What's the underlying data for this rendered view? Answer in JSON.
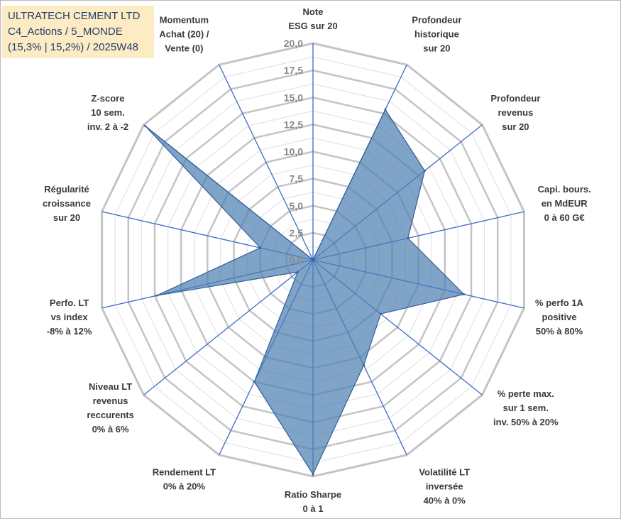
{
  "title": {
    "company": "ULTRATECH CEMENT LTD",
    "category": "C4_Actions / 5_MONDE",
    "stats": "(15,3% | 15,2%) / 2025W48"
  },
  "colors": {
    "fill": "#4f7fb3",
    "stroke": "#2e5f96",
    "grid_major": "#c4c4c4",
    "grid_minor": "#e3e3e3",
    "spoke": "#3b6cc4"
  },
  "chart_data": {
    "type": "radar",
    "title": "ULTRATECH CEMENT LTD",
    "rlim": [
      0,
      20
    ],
    "ticks": [
      "0,0",
      "2,5",
      "5,0",
      "7,5",
      "10,0",
      "12,5",
      "15,0",
      "17,5",
      "20,0"
    ],
    "tick_values": [
      0,
      2.5,
      5,
      7.5,
      10,
      12.5,
      15,
      17.5,
      20
    ],
    "axes": [
      {
        "label": [
          "Note",
          "ESG sur 20"
        ],
        "value": 0
      },
      {
        "label": [
          "Profondeur",
          "historique",
          "sur 20"
        ],
        "value": 15.4
      },
      {
        "label": [
          "Profondeur",
          "revenus",
          "sur 20"
        ],
        "value": 13.2
      },
      {
        "label": [
          "Capi. bours.",
          "en MdEUR",
          "0 à 60 G€"
        ],
        "value": 9.0
      },
      {
        "label": [
          "% perfo 1A",
          "positive",
          "50% à 80%"
        ],
        "value": 14.3
      },
      {
        "label": [
          "% perte max.",
          "sur 1 sem.",
          "inv. 50% à 20%"
        ],
        "value": 8.0
      },
      {
        "label": [
          "Volatilité LT",
          "inversée",
          "40% à 0%"
        ],
        "value": 10.8
      },
      {
        "label": [
          "Ratio Sharpe",
          "0 à 1"
        ],
        "value": 19.8
      },
      {
        "label": [
          "Rendement LT",
          "0% à 20%"
        ],
        "value": 12.5
      },
      {
        "label": [
          "Niveau LT",
          "revenus",
          "reccurents",
          "0% à 6%"
        ],
        "value": 1.8
      },
      {
        "label": [
          "Perfo. LT",
          "vs index",
          "-8% à 12%"
        ],
        "value": 14.8
      },
      {
        "label": [
          "Régularité",
          "croissance",
          "sur 20"
        ],
        "value": 5.0
      },
      {
        "label": [
          "Z-score",
          "10 sem.",
          "inv. 2 à -2"
        ],
        "value": 19.8
      },
      {
        "label": [
          "Momentum",
          "Achat (20) /",
          "Vente (0)"
        ],
        "value": 0
      }
    ]
  }
}
